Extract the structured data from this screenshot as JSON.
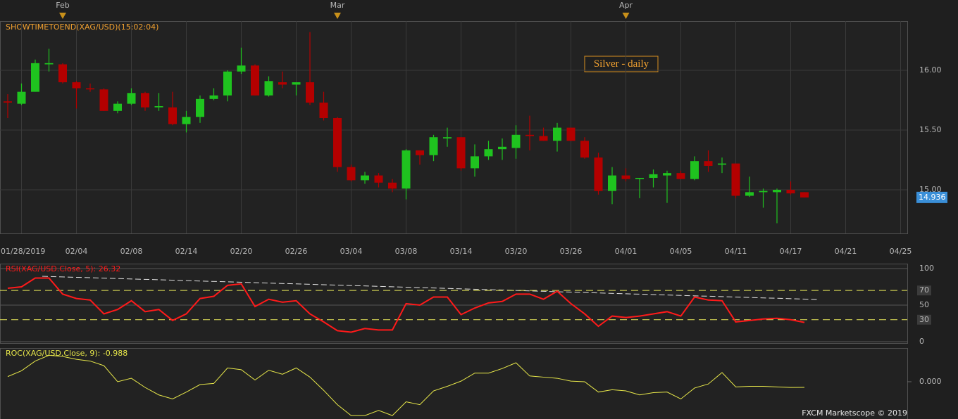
{
  "chart_data": [
    {
      "type": "candlestick",
      "title": "SHOWTIMETOEND(XAG/USD)(15:02:04)",
      "annotation": "Silver - daily",
      "top_categories": [
        null,
        null,
        null,
        null,
        "Feb",
        null,
        null,
        null,
        null,
        null,
        null,
        null,
        null,
        null,
        null,
        null,
        null,
        null,
        null,
        null,
        null,
        null,
        null,
        null,
        "Mar",
        null,
        null,
        null,
        null,
        null,
        null,
        null,
        null,
        null,
        null,
        null,
        null,
        null,
        null,
        null,
        null,
        null,
        null,
        null,
        null,
        "Apr",
        null,
        null,
        null,
        null,
        null,
        null,
        null,
        null,
        null,
        null,
        null,
        null,
        null,
        null,
        null,
        null,
        null,
        null,
        null,
        null
      ],
      "categories": [
        null,
        "01/28/2019",
        null,
        null,
        null,
        "02/04",
        null,
        null,
        null,
        "02/08",
        null,
        null,
        null,
        "02/14",
        null,
        null,
        null,
        "02/20",
        null,
        null,
        null,
        "02/26",
        null,
        null,
        null,
        "03/04",
        null,
        null,
        null,
        "03/08",
        null,
        null,
        null,
        "03/14",
        null,
        null,
        null,
        "03/20",
        null,
        null,
        null,
        "03/26",
        null,
        null,
        null,
        "04/01",
        null,
        null,
        null,
        "04/05",
        null,
        null,
        null,
        "04/11",
        null,
        null,
        null,
        "04/17",
        null,
        null,
        null,
        "04/21",
        null,
        null,
        null,
        "04/25"
      ],
      "open": [
        15.74,
        15.72,
        15.82,
        16.05,
        16.05,
        15.9,
        15.85,
        15.84,
        15.66,
        15.72,
        15.81,
        15.69,
        15.69,
        15.55,
        15.61,
        15.76,
        15.79,
        15.99,
        16.04,
        15.79,
        15.9,
        15.88,
        15.9,
        15.73,
        15.6,
        15.19,
        15.08,
        15.12,
        15.06,
        15.01,
        15.33,
        15.29,
        15.43,
        15.44,
        15.18,
        15.28,
        15.34,
        15.35,
        15.46,
        15.45,
        15.41,
        15.52,
        15.41,
        15.27,
        14.99,
        15.12,
        15.09,
        15.1,
        15.12,
        15.14,
        15.09,
        15.24,
        15.21,
        15.22,
        14.95,
        14.98,
        14.98,
        15.0,
        14.98,
        null,
        null,
        null,
        null,
        null,
        null,
        null
      ],
      "high": [
        15.8,
        15.89,
        16.09,
        16.18,
        16.06,
        15.91,
        15.89,
        15.85,
        15.74,
        15.85,
        15.82,
        15.81,
        15.82,
        15.66,
        15.79,
        15.85,
        16.0,
        16.19,
        16.05,
        15.95,
        15.99,
        15.9,
        16.32,
        15.82,
        15.61,
        15.21,
        15.15,
        15.14,
        15.09,
        15.34,
        15.33,
        15.46,
        15.52,
        15.44,
        15.38,
        15.41,
        15.43,
        15.54,
        15.62,
        15.52,
        15.56,
        15.52,
        15.44,
        15.31,
        15.19,
        15.18,
        15.1,
        15.17,
        15.16,
        15.16,
        15.28,
        15.33,
        15.27,
        15.22,
        15.11,
        15.01,
        15.01,
        15.07,
        14.98,
        null,
        null,
        null,
        null,
        null,
        null,
        null
      ],
      "low": [
        15.6,
        15.71,
        15.82,
        15.99,
        15.89,
        15.68,
        15.82,
        15.66,
        15.64,
        15.71,
        15.66,
        15.66,
        15.54,
        15.48,
        15.56,
        15.75,
        15.74,
        15.97,
        15.79,
        15.78,
        15.85,
        15.79,
        15.71,
        15.58,
        15.15,
        15.07,
        15.05,
        15.02,
        14.98,
        14.92,
        15.21,
        15.24,
        15.36,
        15.16,
        15.11,
        15.25,
        15.25,
        15.26,
        15.33,
        15.41,
        15.32,
        15.41,
        15.26,
        14.96,
        14.88,
        15.07,
        14.93,
        15.02,
        14.89,
        15.09,
        15.08,
        15.15,
        15.14,
        14.93,
        14.94,
        14.85,
        14.72,
        14.96,
        14.936,
        null,
        null,
        null,
        null,
        null,
        null,
        null
      ],
      "close": [
        15.73,
        15.82,
        16.06,
        16.06,
        15.9,
        15.85,
        15.84,
        15.66,
        15.72,
        15.81,
        15.69,
        15.7,
        15.55,
        15.61,
        15.76,
        15.79,
        15.99,
        16.04,
        15.79,
        15.91,
        15.88,
        15.9,
        15.73,
        15.6,
        15.19,
        15.08,
        15.12,
        15.06,
        15.01,
        15.33,
        15.29,
        15.44,
        15.44,
        15.18,
        15.28,
        15.34,
        15.36,
        15.46,
        15.45,
        15.41,
        15.52,
        15.41,
        15.27,
        14.99,
        15.12,
        15.09,
        15.1,
        15.13,
        15.14,
        15.09,
        15.24,
        15.2,
        15.22,
        14.95,
        14.98,
        14.99,
        15.0,
        14.97,
        14.936,
        null,
        null,
        null,
        null,
        null,
        null,
        null
      ],
      "up_color": "#1fc31f",
      "down_color": "#b40000",
      "ylim": [
        14.635,
        16.412
      ],
      "yticks": [
        {
          "value": 15,
          "label": "15.00"
        },
        {
          "value": 15.5,
          "label": "15.50"
        },
        {
          "value": 16,
          "label": "16.00"
        }
      ],
      "grid": true
    },
    {
      "type": "line",
      "title": "RSI(XAG/USD.Close, 5): 26.32",
      "color": "#ff1a1a",
      "values": [
        73,
        75,
        87,
        87,
        65,
        59,
        57,
        38,
        44,
        56,
        41,
        44,
        29,
        38,
        59,
        62,
        77,
        79,
        48,
        58,
        54,
        56,
        38,
        27,
        15,
        13,
        18,
        16,
        16,
        52,
        50,
        61,
        61,
        37,
        46,
        53,
        55,
        65,
        65,
        58,
        69,
        52,
        38,
        21,
        35,
        33,
        35,
        38,
        41,
        35,
        61,
        57,
        56,
        27,
        29,
        31,
        32,
        30,
        26.32,
        null,
        null,
        null,
        null,
        null,
        null,
        null
      ],
      "ylim": [
        -2.9,
        106.7
      ],
      "yticks": [
        0,
        30,
        50,
        70,
        100
      ],
      "levels": [
        30,
        70
      ],
      "level_color": "#e8e85a",
      "grid": true
    },
    {
      "type": "line",
      "title": "ROC(XAG/USD.Close, 9): -0.988",
      "color": "#e8e84a",
      "values": [
        0.9,
        1.9,
        3.6,
        4.6,
        4.4,
        3.9,
        3.6,
        2.8,
        0,
        0.6,
        -1.0,
        -2.3,
        -3.0,
        -1.8,
        -0.5,
        -0.3,
        2.4,
        2.1,
        0.3,
        2.0,
        1.3,
        2.4,
        0.8,
        -1.5,
        -4.0,
        -5.9,
        -5.9,
        -5.0,
        -5.9,
        -3.5,
        -4.0,
        -1.6,
        -0.8,
        0.1,
        1.5,
        1.5,
        2.3,
        3.3,
        1.0,
        0.8,
        0.6,
        0.1,
        0,
        -1.8,
        -1.4,
        -1.6,
        -2.3,
        -1.9,
        -1.8,
        -3.0,
        -1.1,
        -0.4,
        1.6,
        -0.9,
        -0.8,
        -0.8,
        -0.9,
        -1.0,
        -0.988,
        null,
        null,
        null,
        null,
        null,
        null,
        null
      ],
      "ylim": [
        -6.25,
        5.875
      ],
      "yticks": [
        {
          "value": 0,
          "label": "0.000"
        }
      ],
      "grid": false
    }
  ],
  "footer": "FXCM Marketscope © 2019"
}
